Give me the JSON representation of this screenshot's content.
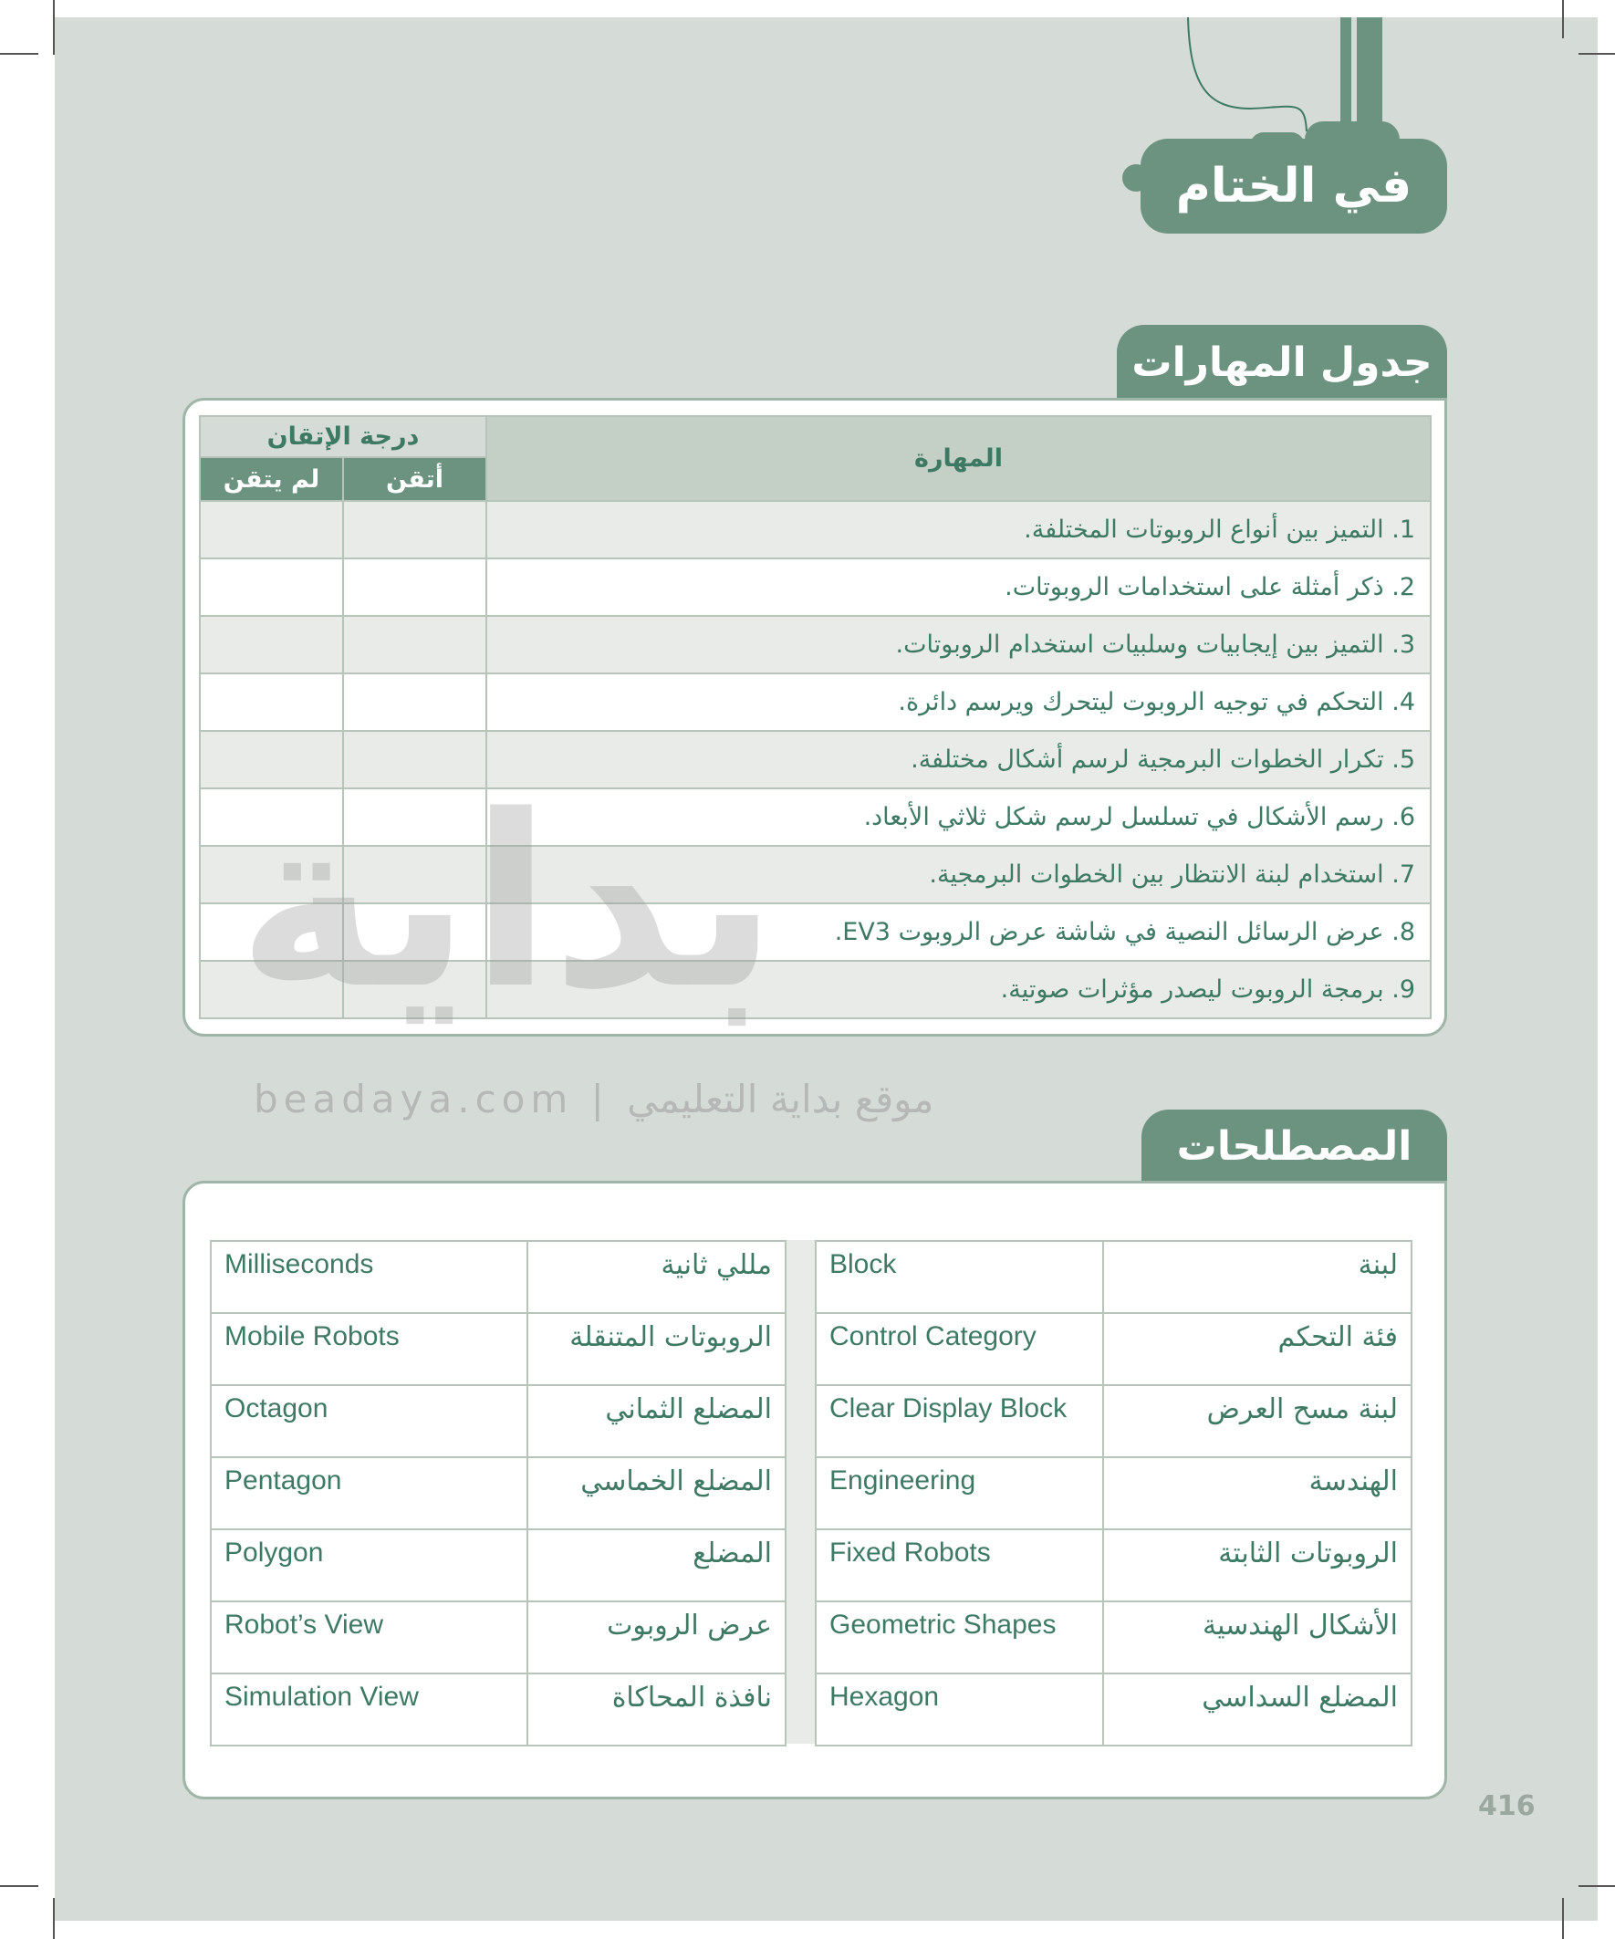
{
  "header": {
    "title": "في الختام"
  },
  "skills_section": {
    "title": "جدول المهارات",
    "col_skill": "المهارة",
    "col_mastery": "درجة الإتقان",
    "col_mastered": "أتقن",
    "col_not_mastered": "لم يتقن",
    "items": [
      "1. التميز بين أنواع الروبوتات المختلفة.",
      "2. ذكر أمثلة على استخدامات الروبوتات.",
      "3. التميز بين إيجابيات وسلبيات استخدام الروبوتات.",
      "4. التحكم في توجيه الروبوت ليتحرك ويرسم دائرة.",
      "5. تكرار الخطوات البرمجية لرسم أشكال مختلفة.",
      "6. رسم الأشكال في تسلسل لرسم شكل ثلاثي الأبعاد.",
      "7. استخدام لبنة الانتظار بين الخطوات البرمجية.",
      "8. عرض الرسائل النصية في شاشة عرض الروبوت  EV3.",
      "9. برمجة الروبوت ليصدر مؤثرات صوتية."
    ]
  },
  "terms_section": {
    "title": "المصطلحات",
    "right": [
      {
        "ar": "لبنة",
        "en": "Block"
      },
      {
        "ar": "فئة التحكم",
        "en": "Control Category"
      },
      {
        "ar": "لبنة مسح العرض",
        "en": "Clear Display Block"
      },
      {
        "ar": "الهندسة",
        "en": "Engineering"
      },
      {
        "ar": "الروبوتات الثابتة",
        "en": "Fixed Robots"
      },
      {
        "ar": "الأشكال الهندسية",
        "en": "Geometric Shapes"
      },
      {
        "ar": "المضلع السداسي",
        "en": "Hexagon"
      }
    ],
    "left": [
      {
        "ar": "مللي ثانية",
        "en": "Milliseconds"
      },
      {
        "ar": "الروبوتات المتنقلة",
        "en": "Mobile Robots"
      },
      {
        "ar": "المضلع الثماني",
        "en": "Octagon"
      },
      {
        "ar": "المضلع الخماسي",
        "en": "Pentagon"
      },
      {
        "ar": "المضلع",
        "en": "Polygon"
      },
      {
        "ar": "عرض الروبوت",
        "en": "Robot’s View"
      },
      {
        "ar": "نافذة المحاكاة",
        "en": "Simulation View"
      }
    ]
  },
  "watermark": {
    "logo": "بداية",
    "text": "beadaya.com  |  موقع بداية التعليمي"
  },
  "page_number": "416",
  "colors": {
    "accent": "#6c9380",
    "background": "#d5dbd6",
    "text": "#3e7a63"
  }
}
